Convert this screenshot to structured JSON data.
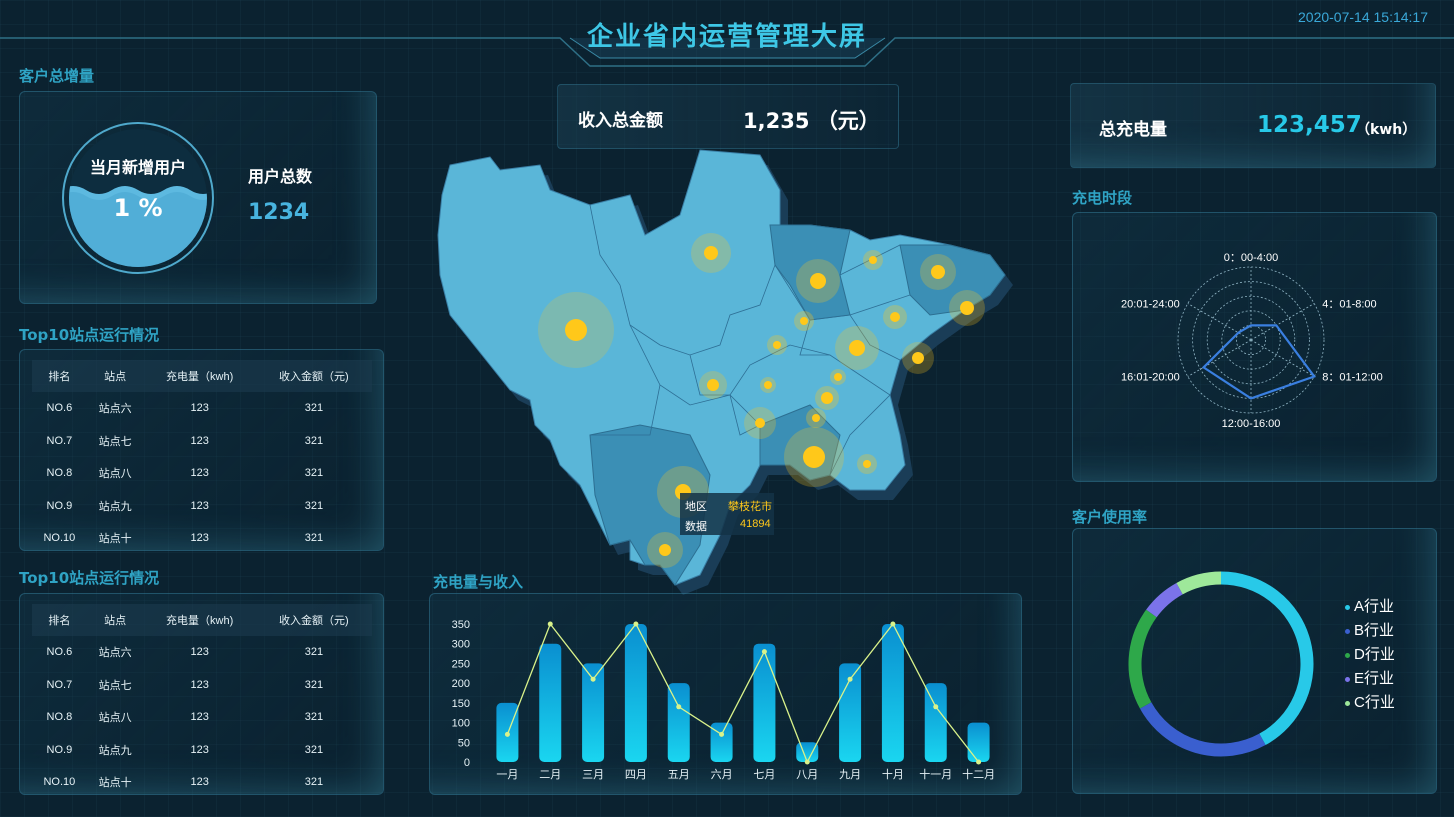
{
  "header": {
    "title": "企业省内运营管理大屏",
    "datetime": "2020-07-14 15:14:17"
  },
  "customer_growth": {
    "section_title": "客户总增量",
    "gauge_label": "当月新增用户",
    "gauge_value": "1 %",
    "total_label": "用户总数",
    "total_value": "1234"
  },
  "top10_a": {
    "section_title": "Top10站点运行情况",
    "headers": [
      "排名",
      "站点",
      "充电量（kwh)",
      "收入金额（元)"
    ],
    "rows": [
      [
        "NO.6",
        "站点六",
        "123",
        "321"
      ],
      [
        "NO.7",
        "站点七",
        "123",
        "321"
      ],
      [
        "NO.8",
        "站点八",
        "123",
        "321"
      ],
      [
        "NO.9",
        "站点九",
        "123",
        "321"
      ],
      [
        "NO.10",
        "站点十",
        "123",
        "321"
      ]
    ]
  },
  "top10_b": {
    "section_title": "Top10站点运行情况",
    "headers": [
      "排名",
      "站点",
      "充电量（kwh)",
      "收入金额（元)"
    ],
    "rows": [
      [
        "NO.6",
        "站点六",
        "123",
        "321"
      ],
      [
        "NO.7",
        "站点七",
        "123",
        "321"
      ],
      [
        "NO.8",
        "站点八",
        "123",
        "321"
      ],
      [
        "NO.9",
        "站点九",
        "123",
        "321"
      ],
      [
        "NO.10",
        "站点十",
        "123",
        "321"
      ]
    ]
  },
  "revenue": {
    "label": "收入总金额",
    "value": "1,235 （元）"
  },
  "charge_total": {
    "label": "总充电量",
    "value": "123,457",
    "unit": "（kwh）"
  },
  "map": {
    "tooltip": {
      "region_label": "地区",
      "region_value": "攀枝花市",
      "data_label": "数据",
      "data_value": "41894"
    },
    "colors": {
      "land": "#5ab6d8",
      "land_dark": "#3b8fb5",
      "dot": "#ffc81a"
    }
  },
  "chart_data": [
    {
      "type": "bar",
      "title": "充电量与收入",
      "categories": [
        "一月",
        "二月",
        "三月",
        "四月",
        "五月",
        "六月",
        "七月",
        "八月",
        "九月",
        "十月",
        "十一月",
        "十二月"
      ],
      "series": [
        {
          "values": [
            150,
            300,
            250,
            350,
            200,
            100,
            300,
            50,
            250,
            350,
            200,
            100
          ]
        },
        {
          "values": [
            70,
            350,
            210,
            350,
            140,
            70,
            280,
            0,
            210,
            350,
            140,
            0
          ]
        }
      ],
      "ylim": [
        0,
        350
      ],
      "yticks": [
        "0",
        "50",
        "100",
        "150",
        "200",
        "250",
        "300",
        "350"
      ],
      "colors": {
        "bar_top": "#0a8fd0",
        "bar_bottom": "#1ad6f0",
        "line": "#d9f28a"
      }
    },
    {
      "type": "radar",
      "title": "充电时段",
      "categories": [
        "0：00-4:00",
        "4：01-8:00",
        "8：01-12:00",
        "12:00-16:00",
        "16:01-20:00",
        "20:01-24:00"
      ],
      "values": [
        20,
        40,
        100,
        80,
        75,
        20
      ],
      "max": 100,
      "colors": {
        "line": "#3a7fe0"
      }
    },
    {
      "type": "pie",
      "title": "客户使用率",
      "labels": [
        "A行业",
        "B行业",
        "D行业",
        "E行业",
        "C行业"
      ],
      "values": [
        42,
        25,
        18,
        7,
        8
      ],
      "colors": [
        "#28c9e8",
        "#3a5fcf",
        "#2ea84a",
        "#7b73ea",
        "#9ee89a"
      ]
    }
  ]
}
